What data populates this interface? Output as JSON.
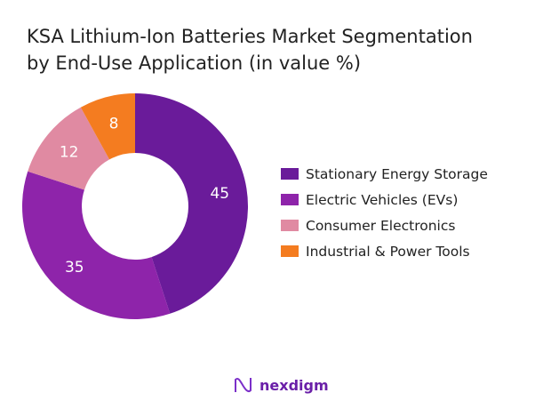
{
  "chart_data": {
    "type": "pie",
    "variant": "donut",
    "title": "KSA Lithium-Ion Batteries Market Segmentation by End-Use Application (in value %)",
    "title_lines": [
      "KSA Lithium-Ion Batteries Market Segmentation",
      "by End-Use Application (in value %)"
    ],
    "categories": [
      "Stationary Energy Storage",
      "Electric Vehicles (EVs)",
      "Consumer Electronics",
      "Industrial & Power Tools"
    ],
    "values": [
      45,
      35,
      12,
      8
    ],
    "colors": [
      "#6a1b9a",
      "#8e24aa",
      "#e08aa2",
      "#f47c20"
    ],
    "legend_position": "right"
  },
  "brand": {
    "name": "nexdigm",
    "icon": "nexdigm-wave-logo"
  }
}
